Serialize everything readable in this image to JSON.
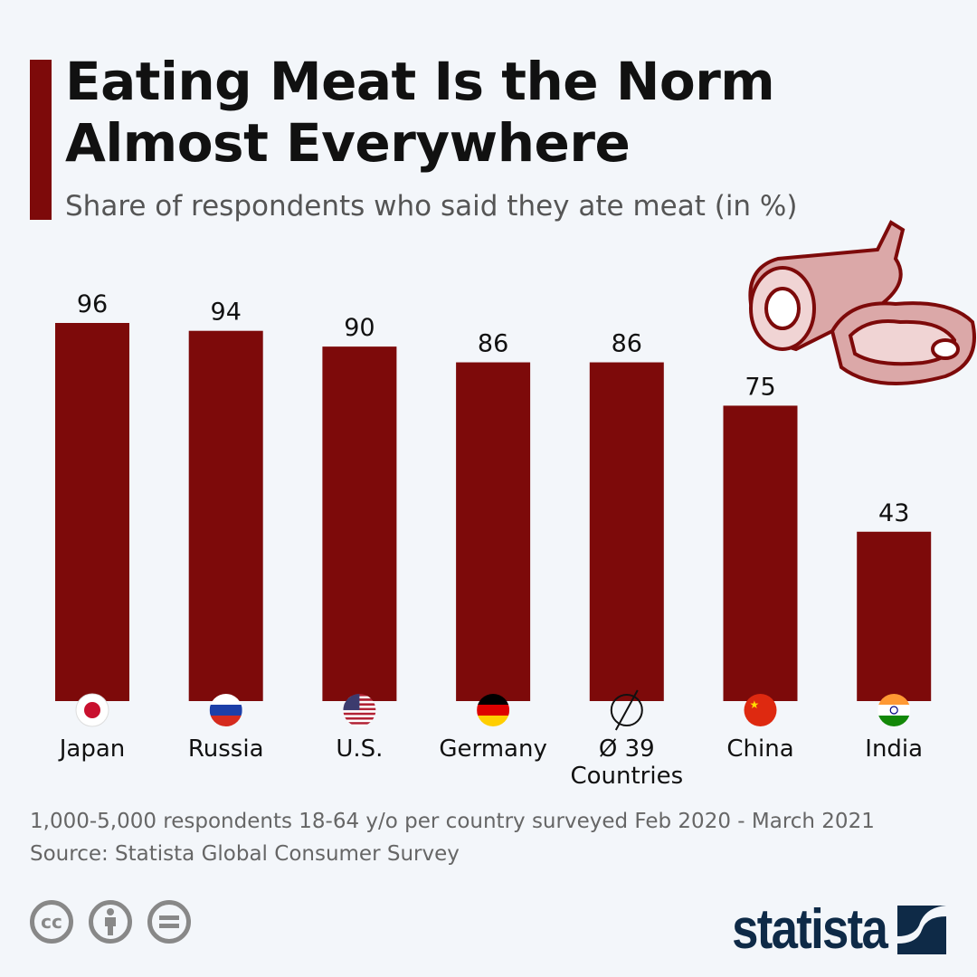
{
  "header": {
    "title_line1": "Eating Meat Is the Norm",
    "title_line2": "Almost Everywhere",
    "subtitle": "Share of respondents who said they ate meat (in %)"
  },
  "chart_data": {
    "type": "bar",
    "categories": [
      "Japan",
      "Russia",
      "U.S.",
      "Germany",
      "Ø 39 Countries",
      "China",
      "India"
    ],
    "category_lines": [
      [
        "Japan"
      ],
      [
        "Russia"
      ],
      [
        "U.S."
      ],
      [
        "Germany"
      ],
      [
        "Ø 39",
        "Countries"
      ],
      [
        "China"
      ],
      [
        "India"
      ]
    ],
    "values": [
      96,
      94,
      90,
      86,
      86,
      75,
      43
    ],
    "flags": [
      "japan-flag",
      "russia-flag",
      "usa-flag",
      "germany-flag",
      "average-symbol",
      "china-flag",
      "india-flag"
    ],
    "ylim": [
      0,
      100
    ],
    "grid": false,
    "bar_color": "#7d0a0a"
  },
  "footer": {
    "note": "1,000-5,000 respondents 18-64 y/o per country surveyed Feb 2020 - March 2021",
    "source": "Source: Statista Global Consumer Survey",
    "cc_label": "cc",
    "brand": "statista"
  }
}
